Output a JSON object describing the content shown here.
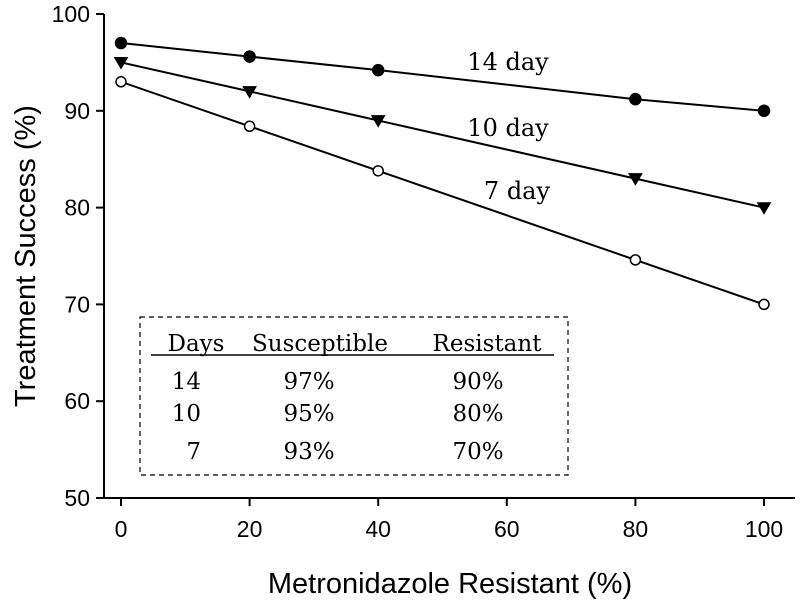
{
  "chart_data": {
    "type": "line",
    "title": "",
    "xlabel": "Metronidazole Resistant (%)",
    "ylabel": "Treatment Success (%)",
    "xlim": [
      0,
      100
    ],
    "ylim": [
      50,
      100
    ],
    "x_ticks": [
      0,
      20,
      40,
      60,
      80,
      100
    ],
    "y_ticks": [
      50,
      60,
      70,
      80,
      90,
      100
    ],
    "grid": false,
    "x": [
      0,
      20,
      40,
      80,
      100
    ],
    "series": [
      {
        "name": "14 day",
        "marker": "filled-circle",
        "color": "#000000",
        "values": [
          97,
          95.6,
          94.2,
          91.2,
          90
        ]
      },
      {
        "name": "10 day",
        "marker": "filled-triangle-down",
        "color": "#000000",
        "values": [
          95,
          92,
          89,
          83,
          80
        ]
      },
      {
        "name": "7 day",
        "marker": "open-circle",
        "color": "#000000",
        "values": [
          93,
          88.4,
          83.8,
          74.6,
          70
        ]
      }
    ],
    "table": {
      "headers": [
        "Days",
        "Susceptible",
        "Resistant"
      ],
      "rows": [
        [
          "14",
          "97%",
          "90%"
        ],
        [
          "10",
          "95%",
          "80%"
        ],
        [
          "7",
          "93%",
          "70%"
        ]
      ]
    }
  }
}
